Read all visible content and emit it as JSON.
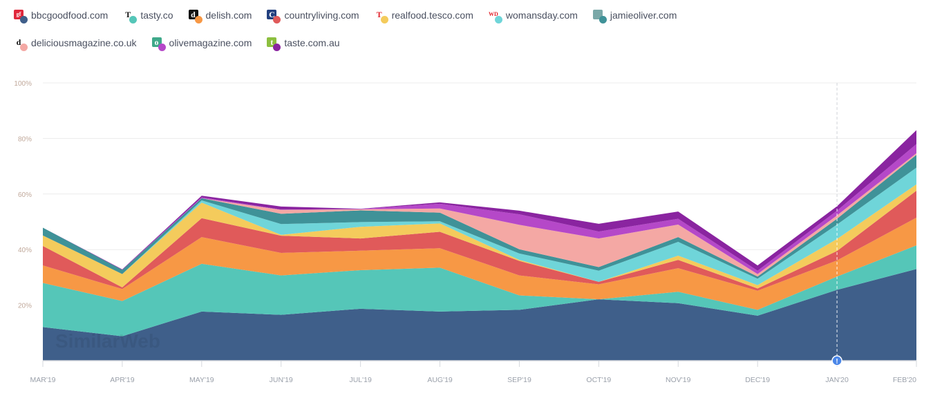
{
  "legend": [
    {
      "name": "bbcgoodfood.com",
      "color": "#3f5f8a",
      "icon": "bbcgoodfood-favicon",
      "glyph": "gf",
      "icon_bg": "#e0283c",
      "icon_fg": "#fff"
    },
    {
      "name": "tasty.co",
      "color": "#55c6b8",
      "icon": "tasty-favicon",
      "glyph": "T",
      "icon_bg": "#fff",
      "icon_fg": "#111"
    },
    {
      "name": "delish.com",
      "color": "#f79845",
      "icon": "delish-favicon",
      "glyph": "d",
      "icon_bg": "#111",
      "icon_fg": "#fff"
    },
    {
      "name": "countryliving.com",
      "color": "#e05a5a",
      "icon": "countryliving-favicon",
      "glyph": "C",
      "icon_bg": "#23407f",
      "icon_fg": "#fff"
    },
    {
      "name": "realfood.tesco.com",
      "color": "#f4cb5c",
      "icon": "tesco-favicon",
      "glyph": "T",
      "icon_bg": "#fff",
      "icon_fg": "#e0202a"
    },
    {
      "name": "womansday.com",
      "color": "#6fd5d9",
      "icon": "womansday-favicon",
      "glyph": "WD",
      "icon_bg": "#fff",
      "icon_fg": "#e0202a"
    },
    {
      "name": "jamieoliver.com",
      "color": "#3f9298",
      "icon": "jamieoliver-favicon",
      "glyph": "",
      "icon_bg": "#7aa8a8",
      "icon_fg": "#fff"
    },
    {
      "name": "deliciousmagazine.co.uk",
      "color": "#f4a8a4",
      "icon": "deliciousmagazine-favicon",
      "glyph": "d",
      "icon_bg": "#fff",
      "icon_fg": "#111"
    },
    {
      "name": "olivemagazine.com",
      "color": "#b548c8",
      "icon": "olivemagazine-favicon",
      "glyph": "o",
      "icon_bg": "#3fa98a",
      "icon_fg": "#fff"
    },
    {
      "name": "taste.com.au",
      "color": "#8a24a0",
      "icon": "taste-favicon",
      "glyph": "t",
      "icon_bg": "#8cbf3f",
      "icon_fg": "#fff"
    }
  ],
  "chart_data": {
    "type": "area",
    "stacked": true,
    "categories": [
      "MAR'19",
      "APR'19",
      "MAY'19",
      "JUN'19",
      "JUL'19",
      "AUG'19",
      "SEP'19",
      "OCT'19",
      "NOV'19",
      "DEC'19",
      "JAN'20",
      "FEB'20"
    ],
    "yticks": [
      "20%",
      "40%",
      "60%",
      "80%",
      "100%"
    ],
    "ylim": [
      0,
      100
    ],
    "grid": true,
    "legend_position": "top",
    "watermark": "SimilarWeb",
    "annotation": {
      "category": "JAN'20",
      "glyph": "!",
      "color": "#4a86e8"
    },
    "series": [
      {
        "name": "bbcgoodfood.com",
        "values": [
          12.1,
          8.8,
          17.7,
          16.5,
          18.7,
          17.7,
          18.3,
          22.1,
          20.7,
          16.2,
          25.5,
          33.0
        ]
      },
      {
        "name": "tasty.co",
        "values": [
          15.9,
          12.7,
          17.2,
          14.2,
          13.9,
          15.8,
          5.2,
          0,
          4.1,
          2.1,
          4.8,
          8.5
        ]
      },
      {
        "name": "delish.com",
        "values": [
          6.3,
          4.3,
          9.6,
          8.1,
          7.0,
          7.0,
          7.2,
          5.4,
          8.5,
          6.9,
          5.8,
          10.0
        ]
      },
      {
        "name": "countryliving.com",
        "values": [
          7.0,
          0.6,
          6.8,
          6.2,
          4.4,
          5.9,
          5.2,
          0.9,
          3.0,
          0.8,
          3.4,
          9.7
        ]
      },
      {
        "name": "realfood.tesco.com",
        "values": [
          3.8,
          4.8,
          5.6,
          0.3,
          4.2,
          3.0,
          0.4,
          0,
          1.5,
          1.2,
          4.3,
          2.3
        ]
      },
      {
        "name": "womansday.com",
        "values": [
          0,
          0,
          0.8,
          3.9,
          1.7,
          0.8,
          2.3,
          4.0,
          5.0,
          2.3,
          5.2,
          6.0
        ]
      },
      {
        "name": "jamieoliver.com",
        "values": [
          2.8,
          1.5,
          0.8,
          3.7,
          4.2,
          3.1,
          1.5,
          1.3,
          1.7,
          0.8,
          2.1,
          4.6
        ]
      },
      {
        "name": "deliciousmagazine.co.uk",
        "values": [
          0,
          0,
          0,
          1.4,
          0.4,
          1.5,
          8.8,
          10.3,
          4.5,
          0.9,
          1.2,
          0.6
        ]
      },
      {
        "name": "olivemagazine.com",
        "values": [
          0,
          0,
          0.3,
          0.1,
          0.1,
          1.7,
          3.8,
          2.5,
          2.1,
          1.2,
          1.7,
          3.3
        ]
      },
      {
        "name": "taste.com.au",
        "values": [
          0,
          0.2,
          0.6,
          1.1,
          0.1,
          0.5,
          1.3,
          2.8,
          2.6,
          1.9,
          1.6,
          5.0
        ]
      }
    ]
  }
}
